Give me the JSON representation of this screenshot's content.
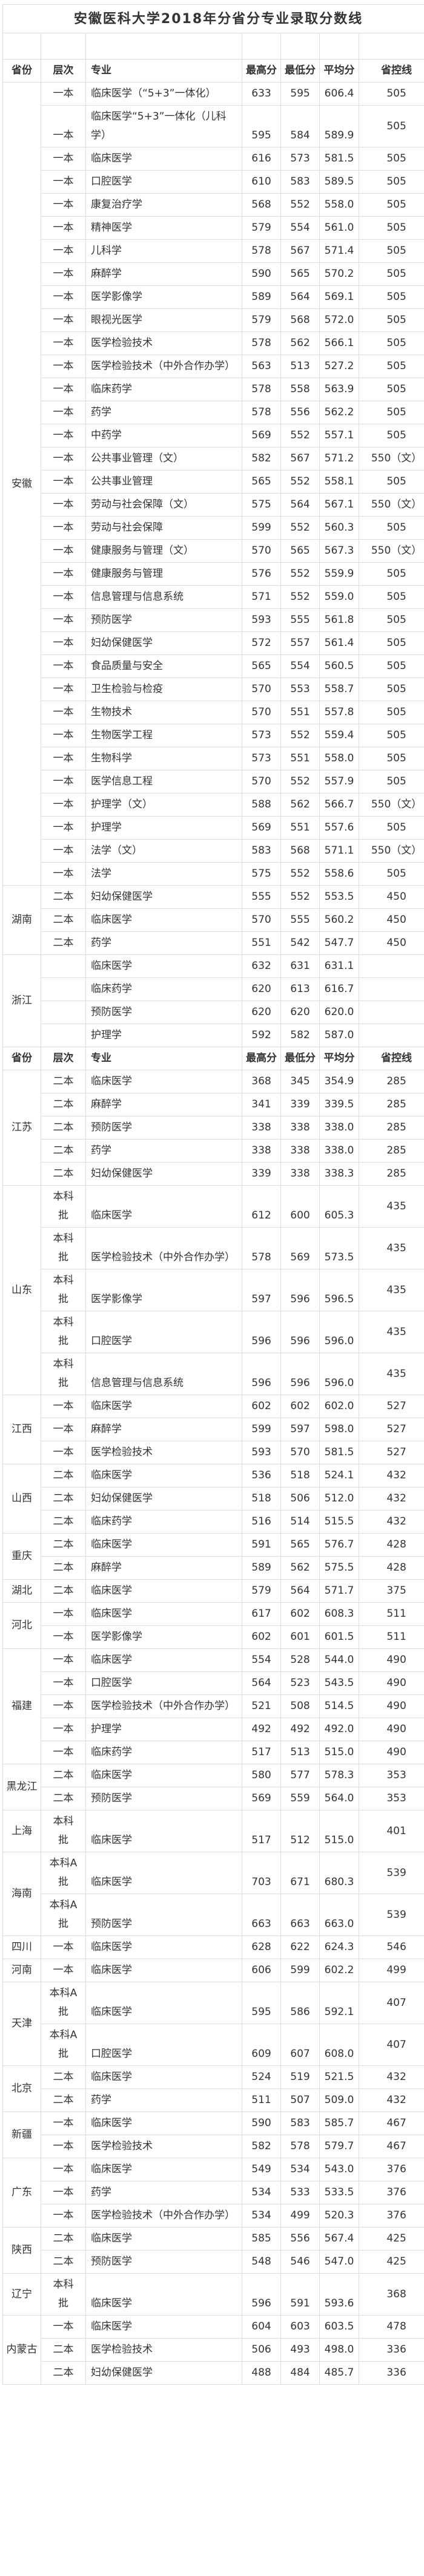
{
  "title": "安徽医科大学2018年分省分专业录取分数线",
  "header": {
    "province": "省份",
    "level": "层次",
    "major": "专业",
    "max": "最高分",
    "min": "最低分",
    "avg": "平均分",
    "control": "省控线"
  },
  "groups": [
    {
      "province": "安徽",
      "rows": [
        [
          "一本",
          "临床医学（“5+3”一体化）",
          "633",
          "595",
          "606.4",
          "505"
        ],
        [
          "一本",
          "临床医学“5+3”一体化（儿科学）",
          "595",
          "584",
          "589.9",
          "505"
        ],
        [
          "一本",
          "临床医学",
          "616",
          "573",
          "581.5",
          "505"
        ],
        [
          "一本",
          "口腔医学",
          "610",
          "583",
          "589.5",
          "505"
        ],
        [
          "一本",
          "康复治疗学",
          "568",
          "552",
          "558.0",
          "505"
        ],
        [
          "一本",
          "精神医学",
          "579",
          "554",
          "561.0",
          "505"
        ],
        [
          "一本",
          "儿科学",
          "578",
          "567",
          "571.4",
          "505"
        ],
        [
          "一本",
          "麻醉学",
          "590",
          "565",
          "570.2",
          "505"
        ],
        [
          "一本",
          "医学影像学",
          "589",
          "564",
          "569.1",
          "505"
        ],
        [
          "一本",
          "眼视光医学",
          "579",
          "568",
          "572.0",
          "505"
        ],
        [
          "一本",
          "医学检验技术",
          "578",
          "562",
          "566.1",
          "505"
        ],
        [
          "一本",
          "医学检验技术（中外合作办学）",
          "563",
          "513",
          "527.2",
          "505"
        ],
        [
          "一本",
          "临床药学",
          "578",
          "558",
          "563.9",
          "505"
        ],
        [
          "一本",
          "药学",
          "578",
          "556",
          "562.2",
          "505"
        ],
        [
          "一本",
          "中药学",
          "569",
          "552",
          "557.1",
          "505"
        ],
        [
          "一本",
          "公共事业管理（文）",
          "582",
          "567",
          "571.2",
          "550（文）"
        ],
        [
          "一本",
          "公共事业管理",
          "565",
          "552",
          "558.1",
          "505"
        ],
        [
          "一本",
          "劳动与社会保障（文）",
          "575",
          "564",
          "567.1",
          "550（文）"
        ],
        [
          "一本",
          "劳动与社会保障",
          "599",
          "552",
          "560.3",
          "505"
        ],
        [
          "一本",
          "健康服务与管理（文）",
          "570",
          "565",
          "567.3",
          "550（文）"
        ],
        [
          "一本",
          "健康服务与管理",
          "576",
          "552",
          "559.9",
          "505"
        ],
        [
          "一本",
          "信息管理与信息系统",
          "571",
          "552",
          "559.0",
          "505"
        ],
        [
          "一本",
          "预防医学",
          "593",
          "555",
          "561.8",
          "505"
        ],
        [
          "一本",
          "妇幼保健医学",
          "572",
          "557",
          "561.4",
          "505"
        ],
        [
          "一本",
          "食品质量与安全",
          "565",
          "554",
          "560.5",
          "505"
        ],
        [
          "一本",
          "卫生检验与检疫",
          "570",
          "553",
          "558.7",
          "505"
        ],
        [
          "一本",
          "生物技术",
          "570",
          "551",
          "557.8",
          "505"
        ],
        [
          "一本",
          "生物医学工程",
          "573",
          "552",
          "559.4",
          "505"
        ],
        [
          "一本",
          "生物科学",
          "573",
          "551",
          "558.0",
          "505"
        ],
        [
          "一本",
          "医学信息工程",
          "570",
          "552",
          "557.9",
          "505"
        ],
        [
          "一本",
          "护理学（文）",
          "588",
          "562",
          "566.7",
          "550（文）"
        ],
        [
          "一本",
          "护理学",
          "569",
          "551",
          "557.6",
          "505"
        ],
        [
          "一本",
          "法学（文）",
          "583",
          "568",
          "571.1",
          "550（文）"
        ],
        [
          "一本",
          "法学",
          "575",
          "552",
          "558.6",
          "505"
        ]
      ]
    },
    {
      "province": "湖南",
      "rows": [
        [
          "二本",
          "妇幼保健医学",
          "555",
          "552",
          "553.5",
          "450"
        ],
        [
          "二本",
          "临床医学",
          "570",
          "555",
          "560.2",
          "450"
        ],
        [
          "二本",
          "药学",
          "551",
          "542",
          "547.7",
          "450"
        ]
      ]
    },
    {
      "province": "浙江",
      "rows": [
        [
          "",
          "临床医学",
          "632",
          "631",
          "631.1",
          ""
        ],
        [
          "",
          "临床药学",
          "620",
          "613",
          "616.7",
          ""
        ],
        [
          "",
          "预防医学",
          "620",
          "620",
          "620.0",
          ""
        ],
        [
          "",
          "护理学",
          "592",
          "582",
          "587.0",
          ""
        ]
      ]
    },
    {
      "header": true
    },
    {
      "province": "江苏",
      "rows": [
        [
          "二本",
          "临床医学",
          "368",
          "345",
          "354.9",
          "285"
        ],
        [
          "二本",
          "麻醉学",
          "341",
          "339",
          "339.5",
          "285"
        ],
        [
          "二本",
          "预防医学",
          "338",
          "338",
          "338.0",
          "285"
        ],
        [
          "二本",
          "药学",
          "338",
          "338",
          "338.0",
          "285"
        ],
        [
          "二本",
          "妇幼保健医学",
          "339",
          "338",
          "338.3",
          "285"
        ]
      ]
    },
    {
      "province": "山东",
      "rows": [
        [
          "本科批",
          "临床医学",
          "612",
          "600",
          "605.3",
          "435"
        ],
        [
          "本科批",
          "医学检验技术（中外合作办学）",
          "578",
          "569",
          "573.5",
          "435"
        ],
        [
          "本科批",
          "医学影像学",
          "597",
          "596",
          "596.5",
          "435"
        ],
        [
          "本科批",
          "口腔医学",
          "596",
          "596",
          "596.0",
          "435"
        ],
        [
          "本科批",
          "信息管理与信息系统",
          "596",
          "596",
          "596.0",
          "435"
        ]
      ]
    },
    {
      "province": "江西",
      "rows": [
        [
          "一本",
          "临床医学",
          "602",
          "602",
          "602.0",
          "527"
        ],
        [
          "一本",
          "麻醉学",
          "599",
          "597",
          "598.0",
          "527"
        ],
        [
          "一本",
          "医学检验技术",
          "593",
          "570",
          "581.5",
          "527"
        ]
      ]
    },
    {
      "province": "山西",
      "rows": [
        [
          "二本",
          "临床医学",
          "536",
          "518",
          "524.1",
          "432"
        ],
        [
          "二本",
          "妇幼保健医学",
          "518",
          "506",
          "512.0",
          "432"
        ],
        [
          "二本",
          "临床药学",
          "516",
          "514",
          "515.5",
          "432"
        ]
      ]
    },
    {
      "province": "重庆",
      "rows": [
        [
          "二本",
          "临床医学",
          "591",
          "565",
          "576.7",
          "428"
        ],
        [
          "二本",
          "麻醉学",
          "589",
          "562",
          "575.5",
          "428"
        ]
      ]
    },
    {
      "province": "湖北",
      "rows": [
        [
          "二本",
          "临床医学",
          "579",
          "564",
          "571.7",
          "375"
        ]
      ]
    },
    {
      "province": "河北",
      "rows": [
        [
          "一本",
          "临床医学",
          "617",
          "602",
          "608.3",
          "511"
        ],
        [
          "一本",
          "医学影像学",
          "602",
          "601",
          "601.5",
          "511"
        ]
      ]
    },
    {
      "province": "福建",
      "rows": [
        [
          "一本",
          "临床医学",
          "554",
          "528",
          "544.0",
          "490"
        ],
        [
          "一本",
          "口腔医学",
          "564",
          "523",
          "543.5",
          "490"
        ],
        [
          "一本",
          "医学检验技术（中外合作办学）",
          "521",
          "508",
          "514.5",
          "490"
        ],
        [
          "一本",
          "护理学",
          "492",
          "492",
          "492.0",
          "490"
        ],
        [
          "一本",
          "临床药学",
          "517",
          "513",
          "515.0",
          "490"
        ]
      ]
    },
    {
      "province": "黑龙江",
      "rows": [
        [
          "二本",
          "临床医学",
          "580",
          "577",
          "578.3",
          "353"
        ],
        [
          "二本",
          "预防医学",
          "569",
          "559",
          "564.0",
          "353"
        ]
      ]
    },
    {
      "province": "上海",
      "rows": [
        [
          "本科批",
          "临床医学",
          "517",
          "512",
          "515.0",
          "401"
        ]
      ]
    },
    {
      "province": "海南",
      "rows": [
        [
          "本科A批",
          "临床医学",
          "703",
          "671",
          "680.3",
          "539"
        ],
        [
          "本科A批",
          "预防医学",
          "663",
          "663",
          "663.0",
          "539"
        ]
      ]
    },
    {
      "province": "四川",
      "rows": [
        [
          "一本",
          "临床医学",
          "628",
          "622",
          "624.3",
          "546"
        ]
      ]
    },
    {
      "province": "河南",
      "rows": [
        [
          "一本",
          "临床医学",
          "606",
          "599",
          "602.2",
          "499"
        ]
      ]
    },
    {
      "province": "天津",
      "rows": [
        [
          "本科A批",
          "临床医学",
          "595",
          "586",
          "592.1",
          "407"
        ],
        [
          "本科A批",
          "口腔医学",
          "609",
          "607",
          "608.0",
          "407"
        ]
      ]
    },
    {
      "province": "北京",
      "rows": [
        [
          "二本",
          "临床医学",
          "524",
          "519",
          "521.5",
          "432"
        ],
        [
          "二本",
          "药学",
          "511",
          "507",
          "509.0",
          "432"
        ]
      ]
    },
    {
      "province": "新疆",
      "rows": [
        [
          "一本",
          "临床医学",
          "590",
          "583",
          "585.7",
          "467"
        ],
        [
          "一本",
          "医学检验技术",
          "582",
          "578",
          "579.7",
          "467"
        ]
      ]
    },
    {
      "province": "广东",
      "rows": [
        [
          "一本",
          "临床医学",
          "549",
          "534",
          "543.0",
          "376"
        ],
        [
          "一本",
          "药学",
          "534",
          "533",
          "533.5",
          "376"
        ],
        [
          "一本",
          "医学检验技术（中外合作办学）",
          "534",
          "499",
          "520.3",
          "376"
        ]
      ]
    },
    {
      "province": "陕西",
      "rows": [
        [
          "二本",
          "临床医学",
          "585",
          "556",
          "567.4",
          "425"
        ],
        [
          "二本",
          "预防医学",
          "548",
          "546",
          "547.0",
          "425"
        ]
      ]
    },
    {
      "province": "辽宁",
      "rows": [
        [
          "本科批",
          "临床医学",
          "596",
          "591",
          "593.6",
          "368"
        ]
      ]
    },
    {
      "province": "内蒙古",
      "rows": [
        [
          "一本",
          "临床医学",
          "604",
          "603",
          "603.5",
          "478"
        ],
        [
          "二本",
          "医学检验技术",
          "506",
          "493",
          "498.0",
          "336"
        ],
        [
          "二本",
          "妇幼保健医学",
          "488",
          "484",
          "485.7",
          "336"
        ]
      ]
    }
  ]
}
